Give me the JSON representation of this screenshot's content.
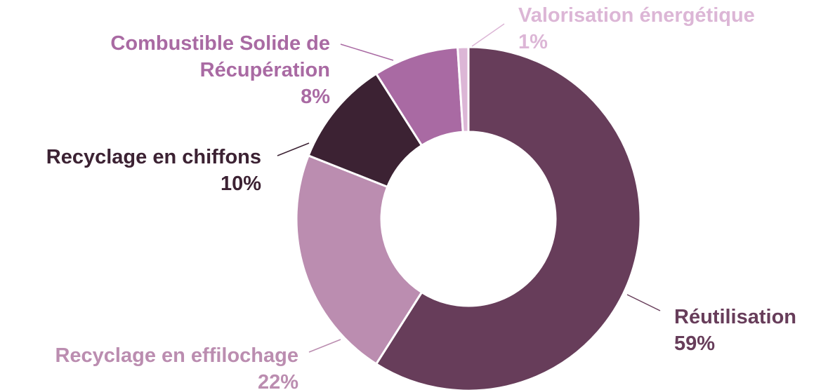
{
  "chart_data": {
    "type": "pie",
    "categories": [
      "Réutilisation",
      "Recyclage en effilochage",
      "Recyclage en chiffons",
      "Combustible Solide de Récupération",
      "Valorisation énergétique"
    ],
    "values": [
      59,
      22,
      10,
      8,
      1
    ],
    "value_labels": [
      "59%",
      "22%",
      "10%",
      "8%",
      "1%"
    ],
    "colors": [
      "#673d5a",
      "#bb8db0",
      "#3c2233",
      "#a96aa3",
      "#dcb6d6"
    ]
  }
}
